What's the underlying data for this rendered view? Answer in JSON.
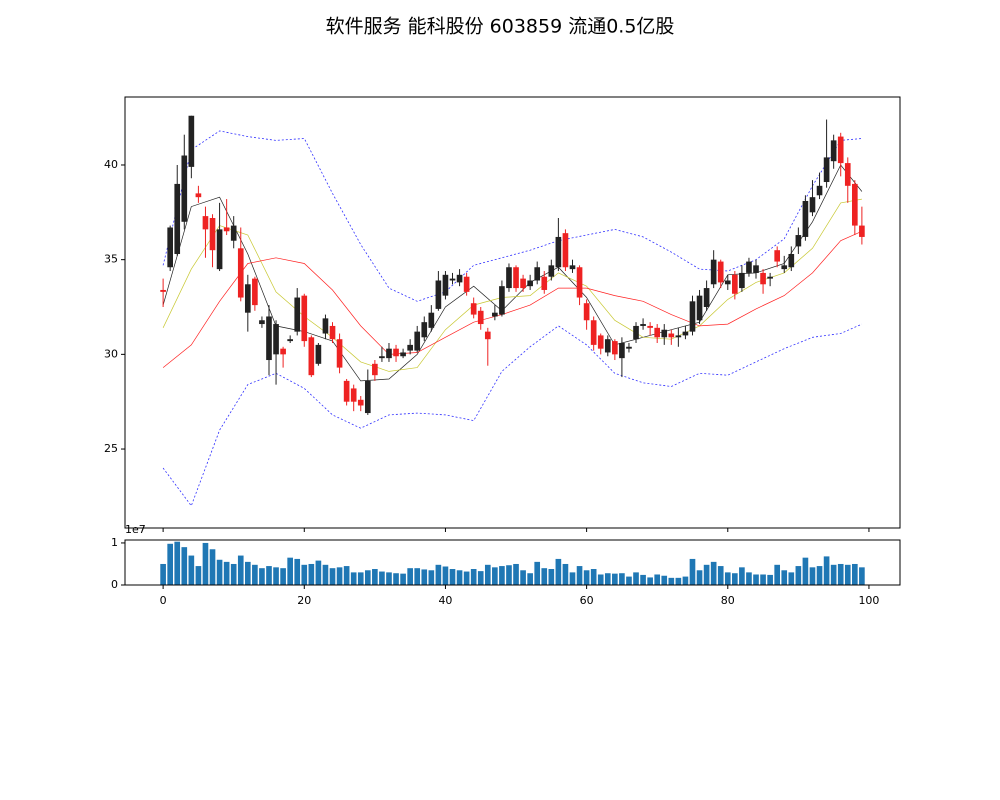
{
  "chart_data": [
    {
      "type": "candlestick",
      "title": "软件服务 能科股份 603859 流通0.5亿股",
      "up_color": "#222222",
      "down_color": "#ee2222",
      "x": [
        0,
        1,
        2,
        3,
        4,
        5,
        6,
        7,
        8,
        9,
        10,
        11,
        12,
        13,
        14,
        15,
        16,
        17,
        18,
        19,
        20,
        21,
        22,
        23,
        24,
        25,
        26,
        27,
        28,
        29,
        30,
        31,
        32,
        33,
        34,
        35,
        36,
        37,
        38,
        39,
        40,
        41,
        42,
        43,
        44,
        45,
        46,
        47,
        48,
        49,
        50,
        51,
        52,
        53,
        54,
        55,
        56,
        57,
        58,
        59,
        60,
        61,
        62,
        63,
        64,
        65,
        66,
        67,
        68,
        69,
        70,
        71,
        72,
        73,
        74,
        75,
        76,
        77,
        78,
        79,
        80,
        81,
        82,
        83,
        84,
        85,
        86,
        87,
        88,
        89,
        90,
        91,
        92,
        93,
        94,
        95,
        96,
        97,
        98,
        99
      ],
      "open": [
        33.4,
        34.6,
        35.3,
        37.0,
        39.9,
        38.5,
        37.3,
        37.2,
        34.5,
        36.7,
        36.0,
        35.6,
        32.2,
        34.0,
        31.6,
        29.7,
        30.0,
        30.3,
        30.7,
        31.2,
        33.1,
        30.9,
        29.5,
        31.1,
        31.5,
        30.8,
        28.6,
        28.2,
        27.6,
        26.9,
        29.5,
        29.8,
        29.8,
        30.3,
        29.9,
        30.2,
        30.2,
        30.9,
        31.4,
        32.4,
        33.1,
        33.9,
        33.8,
        34.1,
        32.7,
        32.3,
        31.2,
        32.0,
        32.1,
        33.5,
        34.6,
        34.0,
        33.6,
        33.9,
        34.1,
        34.1,
        34.6,
        36.4,
        34.5,
        34.6,
        32.7,
        31.8,
        31.0,
        30.1,
        30.7,
        29.8,
        30.3,
        30.8,
        31.5,
        31.5,
        31.4,
        30.9,
        31.1,
        30.9,
        31.0,
        31.2,
        31.8,
        32.5,
        33.7,
        34.9,
        33.7,
        34.2,
        33.5,
        34.3,
        34.3,
        34.3,
        34.0,
        35.5,
        34.5,
        34.6,
        35.7,
        36.2,
        37.5,
        38.4,
        39.1,
        40.2,
        41.5,
        40.1,
        39.0,
        36.8
      ],
      "close": [
        33.3,
        36.7,
        39.0,
        40.5,
        42.6,
        38.3,
        36.6,
        35.5,
        36.6,
        36.5,
        36.8,
        33.0,
        33.7,
        32.6,
        31.8,
        32.0,
        31.6,
        30.0,
        30.8,
        33.0,
        30.7,
        28.9,
        30.5,
        31.9,
        30.8,
        29.3,
        27.5,
        27.5,
        27.3,
        28.6,
        28.9,
        29.9,
        30.3,
        29.9,
        30.1,
        30.5,
        31.2,
        31.7,
        32.2,
        33.9,
        34.2,
        34.0,
        34.2,
        33.3,
        32.1,
        31.6,
        30.8,
        32.2,
        33.6,
        34.6,
        33.5,
        33.5,
        33.9,
        34.6,
        33.4,
        34.7,
        36.2,
        34.6,
        34.7,
        33.0,
        31.8,
        30.5,
        30.3,
        30.8,
        30.0,
        30.6,
        30.4,
        31.5,
        31.6,
        31.4,
        30.9,
        31.3,
        30.9,
        31.0,
        31.2,
        32.8,
        33.1,
        33.5,
        35.0,
        33.8,
        33.9,
        33.2,
        34.3,
        34.9,
        34.7,
        33.7,
        34.1,
        34.9,
        34.7,
        35.3,
        36.3,
        38.1,
        38.3,
        38.9,
        40.4,
        41.3,
        40.1,
        38.9,
        36.8,
        36.2
      ],
      "high": [
        34.0,
        36.8,
        40.0,
        41.6,
        42.6,
        38.9,
        37.8,
        37.4,
        38.0,
        38.2,
        37.3,
        36.7,
        34.2,
        34.1,
        32.0,
        32.6,
        31.8,
        30.4,
        31.0,
        33.5,
        33.2,
        31.0,
        30.6,
        32.1,
        31.7,
        31.1,
        28.7,
        28.4,
        27.8,
        29.2,
        29.7,
        30.4,
        30.6,
        30.5,
        30.3,
        30.8,
        31.5,
        32.0,
        32.6,
        34.4,
        34.4,
        34.3,
        34.5,
        34.3,
        33.0,
        32.5,
        31.4,
        32.6,
        33.9,
        34.8,
        34.7,
        34.2,
        34.2,
        34.9,
        34.4,
        35.0,
        37.2,
        36.6,
        35.0,
        34.7,
        32.9,
        32.0,
        31.1,
        31.0,
        30.8,
        30.9,
        30.6,
        31.7,
        31.9,
        31.7,
        31.6,
        31.6,
        31.3,
        31.4,
        31.5,
        33.1,
        33.4,
        33.9,
        35.5,
        35.0,
        34.2,
        34.4,
        34.7,
        35.1,
        35.0,
        34.5,
        34.3,
        35.7,
        35.2,
        35.7,
        36.7,
        38.4,
        39.2,
        39.6,
        42.4,
        41.6,
        41.7,
        40.4,
        39.2,
        37.8
      ],
      "low": [
        32.5,
        34.4,
        35.2,
        36.6,
        39.3,
        38.0,
        35.1,
        34.6,
        34.4,
        36.3,
        35.6,
        32.8,
        31.2,
        32.3,
        31.4,
        28.9,
        28.4,
        29.3,
        30.6,
        31.0,
        30.4,
        28.8,
        29.4,
        30.8,
        30.6,
        29.0,
        27.3,
        27.0,
        27.0,
        26.8,
        28.6,
        29.6,
        29.6,
        29.6,
        29.8,
        30.0,
        30.1,
        30.7,
        31.2,
        32.3,
        32.9,
        33.7,
        33.6,
        33.1,
        31.9,
        31.3,
        29.4,
        31.8,
        32.0,
        33.3,
        33.3,
        33.3,
        33.4,
        33.7,
        33.2,
        33.9,
        34.4,
        34.4,
        34.3,
        32.6,
        31.3,
        30.2,
        30.0,
        29.9,
        29.7,
        28.8,
        30.1,
        30.6,
        31.3,
        31.0,
        30.6,
        30.5,
        30.5,
        30.4,
        30.8,
        31.0,
        31.6,
        32.3,
        33.5,
        33.5,
        33.4,
        32.9,
        33.3,
        34.1,
        34.0,
        33.2,
        33.6,
        34.6,
        34.3,
        34.4,
        35.3,
        36.0,
        37.3,
        38.2,
        38.8,
        39.8,
        39.4,
        38.0,
        36.3,
        35.8
      ],
      "lines": [
        {
          "color": "#222222",
          "dash": false,
          "x": [
            0,
            4,
            8,
            12,
            16,
            20,
            24,
            28,
            32,
            36,
            40,
            44,
            48,
            52,
            56,
            60,
            64,
            68,
            72,
            76,
            80,
            84,
            88,
            92,
            96,
            99
          ],
          "values": [
            32.6,
            37.8,
            38.3,
            35.3,
            31.5,
            31.2,
            30.7,
            28.6,
            28.7,
            30.0,
            32.5,
            33.6,
            32.3,
            33.8,
            34.6,
            33.0,
            30.5,
            30.9,
            31.3,
            31.7,
            34.2,
            34.3,
            34.8,
            37.0,
            40.0,
            38.6
          ]
        },
        {
          "color": "#c8c832",
          "dash": false,
          "x": [
            0,
            4,
            8,
            12,
            16,
            20,
            24,
            28,
            32,
            36,
            40,
            44,
            48,
            52,
            56,
            60,
            64,
            68,
            72,
            76,
            80,
            84,
            88,
            92,
            96,
            99
          ],
          "values": [
            31.4,
            34.5,
            36.8,
            36.3,
            33.3,
            32.0,
            30.9,
            29.6,
            29.1,
            29.3,
            31.3,
            32.6,
            33.0,
            33.1,
            34.3,
            33.6,
            31.8,
            30.9,
            30.8,
            31.5,
            32.9,
            33.8,
            34.3,
            35.6,
            38.0,
            38.2
          ]
        },
        {
          "color": "#ff2020",
          "dash": false,
          "x": [
            0,
            4,
            8,
            12,
            16,
            20,
            24,
            28,
            32,
            36,
            40,
            44,
            48,
            52,
            56,
            60,
            64,
            68,
            72,
            76,
            80,
            84,
            88,
            92,
            96,
            99
          ],
          "values": [
            29.3,
            30.5,
            32.8,
            34.8,
            35.1,
            34.8,
            33.4,
            31.5,
            30.0,
            30.1,
            30.9,
            31.7,
            32.1,
            32.6,
            33.5,
            33.5,
            33.1,
            32.8,
            32.1,
            31.5,
            31.6,
            32.4,
            33.1,
            34.3,
            36.0,
            36.5
          ]
        },
        {
          "color": "#3030ff",
          "dash": true,
          "x": [
            0,
            4,
            8,
            12,
            16,
            20,
            24,
            28,
            32,
            36,
            40,
            44,
            48,
            52,
            56,
            60,
            64,
            68,
            72,
            76,
            80,
            84,
            88,
            92,
            96,
            99
          ],
          "values": [
            34.7,
            40.8,
            41.8,
            41.5,
            41.3,
            41.4,
            38.5,
            35.8,
            33.5,
            32.8,
            33.3,
            34.7,
            35.1,
            35.5,
            36.0,
            36.3,
            36.6,
            36.2,
            35.4,
            34.5,
            34.4,
            35.0,
            36.1,
            38.9,
            41.3,
            41.4
          ]
        },
        {
          "color": "#3030ff",
          "dash": true,
          "x": [
            0,
            4,
            8,
            12,
            16,
            20,
            24,
            28,
            32,
            36,
            40,
            44,
            48,
            52,
            56,
            60,
            64,
            68,
            72,
            76,
            80,
            84,
            88,
            92,
            96,
            99
          ],
          "values": [
            24.0,
            22.0,
            26.0,
            28.4,
            29.0,
            28.2,
            26.8,
            26.1,
            26.8,
            26.9,
            26.8,
            26.5,
            29.1,
            30.4,
            31.5,
            30.5,
            29.0,
            28.5,
            28.3,
            29.0,
            28.9,
            29.6,
            30.3,
            30.9,
            31.1,
            31.6
          ]
        }
      ],
      "xlim": [
        -5.4,
        104.4
      ],
      "ylim": [
        20.83,
        43.59
      ],
      "yticks": [
        25,
        30,
        35,
        40
      ],
      "xticks": [
        0,
        20,
        40,
        60,
        80,
        100
      ]
    },
    {
      "type": "bar",
      "color": "#1f77b4",
      "offset_label": "1e7",
      "x": [
        0,
        1,
        2,
        3,
        4,
        5,
        6,
        7,
        8,
        9,
        10,
        11,
        12,
        13,
        14,
        15,
        16,
        17,
        18,
        19,
        20,
        21,
        22,
        23,
        24,
        25,
        26,
        27,
        28,
        29,
        30,
        31,
        32,
        33,
        34,
        35,
        36,
        37,
        38,
        39,
        40,
        41,
        42,
        43,
        44,
        45,
        46,
        47,
        48,
        49,
        50,
        51,
        52,
        53,
        54,
        55,
        56,
        57,
        58,
        59,
        60,
        61,
        62,
        63,
        64,
        65,
        66,
        67,
        68,
        69,
        70,
        71,
        72,
        73,
        74,
        75,
        76,
        77,
        78,
        79,
        80,
        81,
        82,
        83,
        84,
        85,
        86,
        87,
        88,
        89,
        90,
        91,
        92,
        93,
        94,
        95,
        96,
        97,
        98,
        99
      ],
      "values": [
        0.5,
        0.98,
        1.03,
        0.9,
        0.7,
        0.45,
        1.0,
        0.85,
        0.6,
        0.55,
        0.5,
        0.7,
        0.55,
        0.48,
        0.4,
        0.45,
        0.42,
        0.4,
        0.65,
        0.62,
        0.48,
        0.5,
        0.58,
        0.48,
        0.4,
        0.42,
        0.45,
        0.3,
        0.3,
        0.35,
        0.38,
        0.32,
        0.3,
        0.28,
        0.27,
        0.4,
        0.4,
        0.37,
        0.35,
        0.48,
        0.44,
        0.38,
        0.35,
        0.32,
        0.38,
        0.33,
        0.48,
        0.42,
        0.45,
        0.47,
        0.5,
        0.35,
        0.28,
        0.55,
        0.4,
        0.38,
        0.62,
        0.5,
        0.3,
        0.45,
        0.35,
        0.38,
        0.25,
        0.28,
        0.27,
        0.28,
        0.2,
        0.3,
        0.24,
        0.18,
        0.25,
        0.22,
        0.17,
        0.17,
        0.2,
        0.62,
        0.35,
        0.48,
        0.55,
        0.45,
        0.3,
        0.28,
        0.42,
        0.3,
        0.25,
        0.25,
        0.24,
        0.48,
        0.35,
        0.3,
        0.45,
        0.65,
        0.42,
        0.45,
        0.68,
        0.48,
        0.5,
        0.48,
        0.5,
        0.42
      ],
      "xlim": [
        -5.4,
        104.4
      ],
      "ylim": [
        0,
        1.07
      ],
      "yticks": [
        0,
        1
      ],
      "xticks": [
        0,
        20,
        40,
        60,
        80,
        100
      ]
    }
  ]
}
